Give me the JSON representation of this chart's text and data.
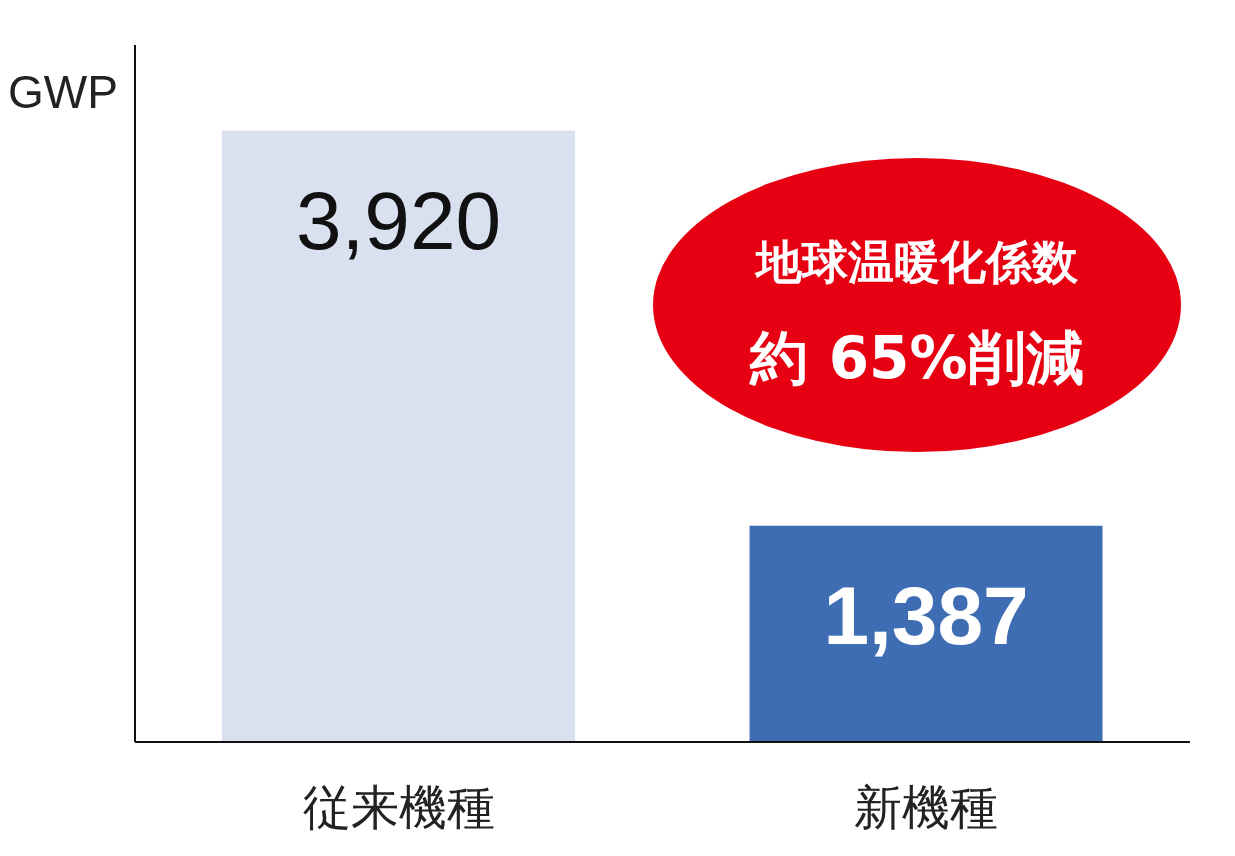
{
  "chart_data": {
    "type": "bar",
    "ylabel": "GWP",
    "categories": [
      "従来機種",
      "新機種"
    ],
    "values": [
      3920,
      1387
    ],
    "value_labels": [
      "3,920",
      "1,387"
    ],
    "colors": [
      "#d9e1f0",
      "#3f6db3"
    ],
    "grid": false,
    "annotations": [
      "地球温暖化係数",
      "約 65%削減"
    ]
  }
}
